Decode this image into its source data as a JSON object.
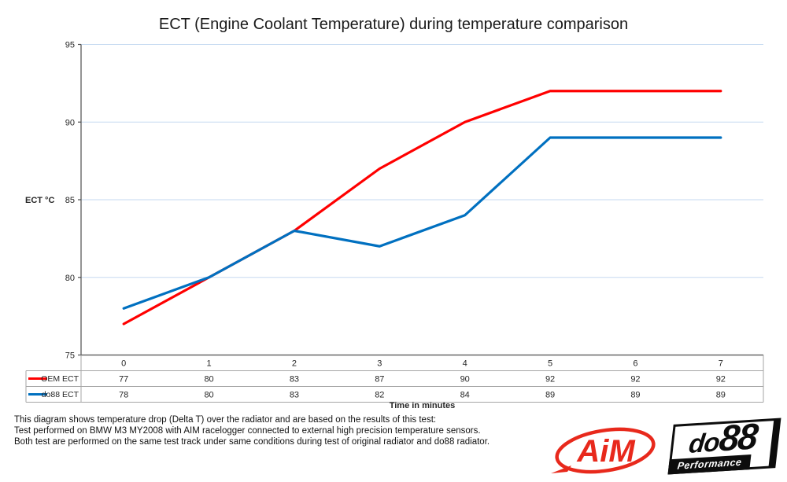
{
  "chart": {
    "title": "ECT (Engine Coolant Temperature) during temperature comparison",
    "y_axis_title": "ECT °C",
    "x_axis_title": "Time in minutes"
  },
  "chart_data": {
    "type": "line",
    "title": "ECT (Engine Coolant Temperature) during temperature comparison",
    "xlabel": "Time in minutes",
    "ylabel": "ECT °C",
    "categories": [
      "0",
      "1",
      "2",
      "3",
      "4",
      "5",
      "6",
      "7"
    ],
    "series": [
      {
        "name": "OEM ECT",
        "color": "#FF0000",
        "values": [
          77,
          80,
          83,
          87,
          90,
          92,
          92,
          92
        ]
      },
      {
        "name": "do88 ECT",
        "color": "#0070C0",
        "values": [
          78,
          80,
          83,
          82,
          84,
          89,
          89,
          89
        ]
      }
    ],
    "ylim": [
      75,
      95
    ],
    "yticks": [
      75,
      80,
      85,
      90,
      95
    ],
    "grid": "horizontal",
    "legend_position": "left-of-data-table",
    "data_table_shown": true
  },
  "notes": {
    "lines": [
      "This diagram shows temperature drop (Delta T) over the radiator and are based on the results of this test:",
      "Test performed on BMW M3 MY2008 with AIM racelogger connected to external high precision temperature sensors.",
      "Both test are performed on the same test track under same conditions during test of original radiator and do88 radiator."
    ]
  },
  "logos": {
    "aim": "AiM",
    "do88_part1": "do",
    "do88_part2": "88",
    "do88_sub": "Performance"
  },
  "colors": {
    "grid": "#C5D9F1",
    "axis": "#4D4D4D",
    "table_border": "#A6A6A6",
    "oem_red": "#FF0000",
    "do88_blue": "#0070C0",
    "logo_red": "#E8291C",
    "logo_black": "#0D0D0D"
  }
}
